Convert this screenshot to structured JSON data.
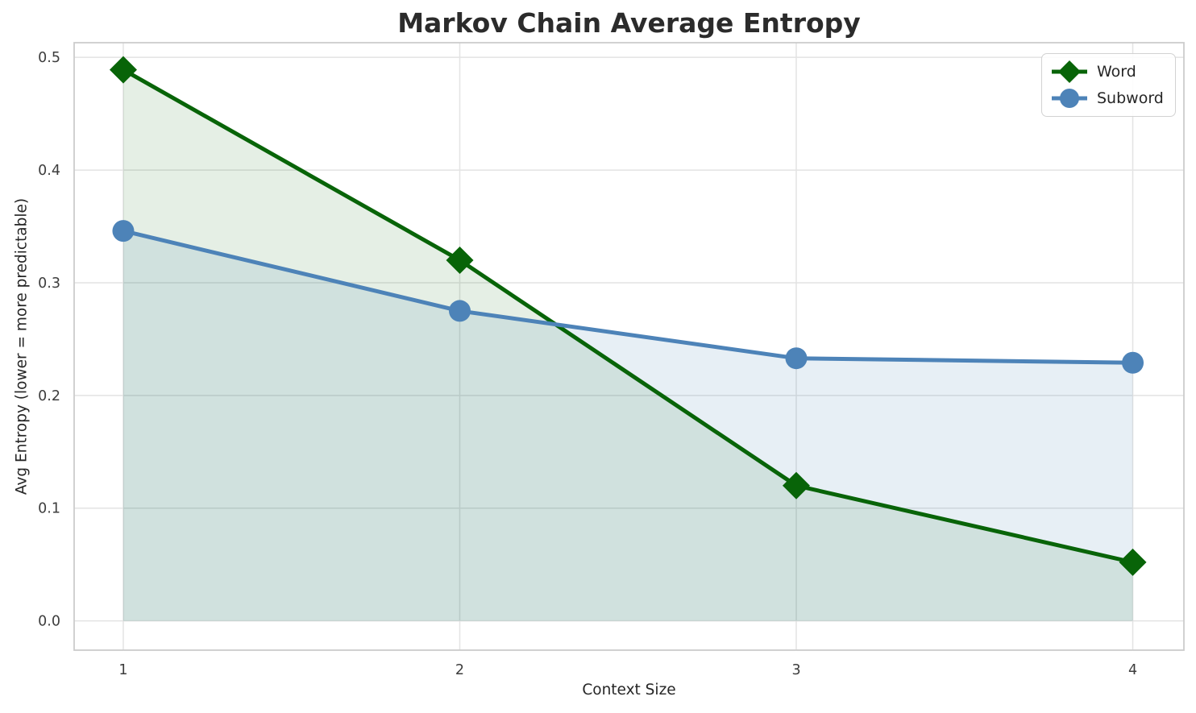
{
  "chart_data": {
    "type": "line",
    "title": "Markov Chain Average Entropy",
    "xlabel": "Context Size",
    "ylabel": "Avg Entropy (lower = more predictable)",
    "x": [
      1,
      2,
      3,
      4
    ],
    "series": [
      {
        "name": "Word",
        "values": [
          0.489,
          0.32,
          0.12,
          0.052
        ],
        "color": "#086408",
        "marker": "diamond",
        "fill_to_zero": true,
        "fill_color": "rgba(0,100,0,0.10)"
      },
      {
        "name": "Subword",
        "values": [
          0.346,
          0.275,
          0.233,
          0.229
        ],
        "color": "#4d83b8",
        "marker": "circle",
        "fill_to_zero": true,
        "fill_color": "rgba(70,130,180,0.13)"
      }
    ],
    "xticks": [
      1,
      2,
      3,
      4
    ],
    "xtick_labels": [
      "1",
      "2",
      "3",
      "4"
    ],
    "yticks": [
      0.0,
      0.1,
      0.2,
      0.3,
      0.4,
      0.5
    ],
    "ytick_labels": [
      "0.0",
      "0.1",
      "0.2",
      "0.3",
      "0.4",
      "0.5"
    ],
    "xlim": [
      0.854,
      4.152
    ],
    "ylim": [
      -0.026,
      0.513
    ],
    "grid": true,
    "legend_position": "upper right",
    "colors": {
      "grid": "#e3e3e3",
      "spine": "#cccccc",
      "title_text": "#2b2b2b",
      "tick_text": "#3d3d3d",
      "label_text": "#262626",
      "background": "#ffffff"
    }
  }
}
